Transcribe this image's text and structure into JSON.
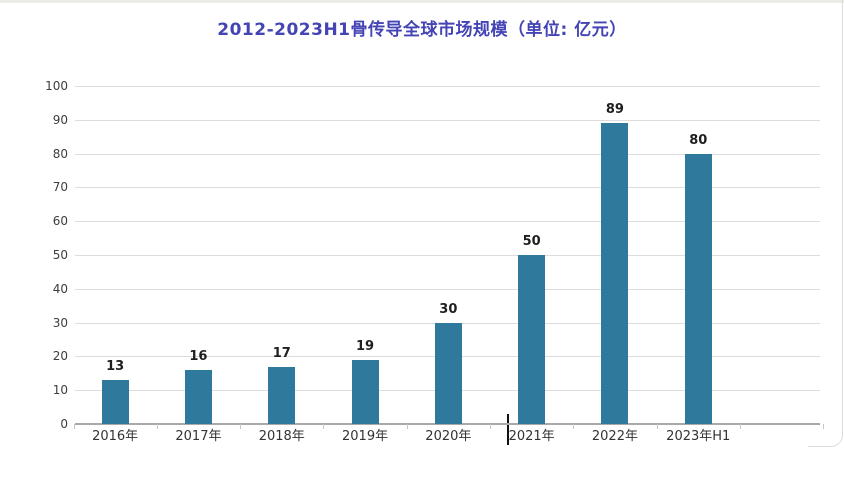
{
  "title": "2012-2023H1骨传导全球市场规模（单位: 亿元）",
  "colors": {
    "bar": "#2f7a9c",
    "title": "#4444b4",
    "grid": "#dcdcdc",
    "axis": "#a9a9a9",
    "tick": "#c7c7c7",
    "y_label_text": "#3d3d3d",
    "x_label_text": "#333333",
    "value_label_text": "#1f1f1f"
  },
  "chart_data": {
    "type": "bar",
    "title": "2012-2023H1骨传导全球市场规模（单位: 亿元）",
    "categories": [
      "2016年",
      "2017年",
      "2018年",
      "2019年",
      "2020年",
      "2021年",
      "2022年",
      "2023年H1"
    ],
    "values": [
      13,
      16,
      17,
      19,
      30,
      50,
      89,
      80
    ],
    "value_labels": [
      13,
      16,
      17,
      19,
      30,
      50,
      89,
      80
    ],
    "xlabel": "",
    "ylabel": "",
    "ylim": [
      0,
      100
    ],
    "yticks": [
      0,
      10,
      20,
      30,
      40,
      50,
      60,
      70,
      80,
      90,
      100
    ],
    "grid": true,
    "legend": "none",
    "bar_color": "#2f7a9c"
  }
}
